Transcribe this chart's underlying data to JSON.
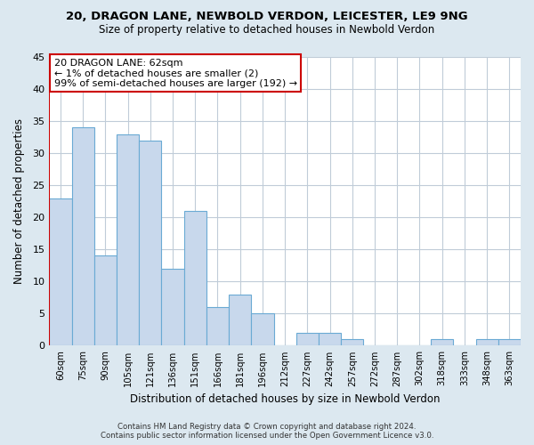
{
  "title": "20, DRAGON LANE, NEWBOLD VERDON, LEICESTER, LE9 9NG",
  "subtitle": "Size of property relative to detached houses in Newbold Verdon",
  "xlabel": "Distribution of detached houses by size in Newbold Verdon",
  "ylabel": "Number of detached properties",
  "bin_labels": [
    "60sqm",
    "75sqm",
    "90sqm",
    "105sqm",
    "121sqm",
    "136sqm",
    "151sqm",
    "166sqm",
    "181sqm",
    "196sqm",
    "212sqm",
    "227sqm",
    "242sqm",
    "257sqm",
    "272sqm",
    "287sqm",
    "302sqm",
    "318sqm",
    "333sqm",
    "348sqm",
    "363sqm"
  ],
  "bar_values": [
    23,
    34,
    14,
    33,
    32,
    12,
    21,
    6,
    8,
    5,
    0,
    2,
    2,
    1,
    0,
    0,
    0,
    1,
    0,
    1,
    1
  ],
  "bar_color": "#c8d8ec",
  "bar_edge_color": "#6aaad4",
  "annotation_box_edge": "#cc0000",
  "annotation_line1": "20 DRAGON LANE: 62sqm",
  "annotation_line2": "← 1% of detached houses are smaller (2)",
  "annotation_line3": "99% of semi-detached houses are larger (192) →",
  "ylim": [
    0,
    45
  ],
  "yticks": [
    0,
    5,
    10,
    15,
    20,
    25,
    30,
    35,
    40,
    45
  ],
  "footer_line1": "Contains HM Land Registry data © Crown copyright and database right 2024.",
  "footer_line2": "Contains public sector information licensed under the Open Government Licence v3.0.",
  "fig_bg_color": "#dce8f0",
  "plot_bg_color": "#ffffff",
  "grid_color": "#c0ccd8",
  "red_line_color": "#cc0000"
}
